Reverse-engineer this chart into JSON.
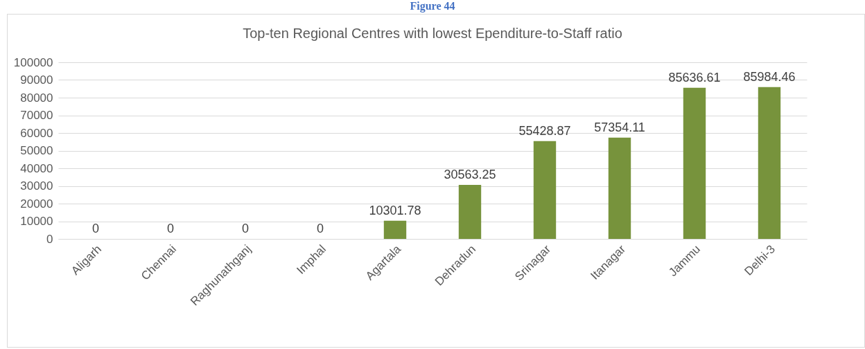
{
  "chart_data": {
    "type": "bar",
    "title": "Top-ten Regional Centres with lowest Ependiture-to-Staff ratio",
    "categories": [
      "Aligarh",
      "Chennai",
      "Raghunathganj",
      "Imphal",
      "Agartala",
      "Dehradun",
      "Srinagar",
      "Itanagar",
      "Jammu",
      "Delhi-3"
    ],
    "values": [
      0,
      0,
      0,
      0,
      10301.78,
      30563.25,
      55428.87,
      57354.11,
      85636.61,
      85984.46
    ],
    "color": "#77933c",
    "ylim": [
      0,
      100000
    ],
    "yticks": [
      0,
      10000,
      20000,
      30000,
      40000,
      50000,
      60000,
      70000,
      80000,
      90000,
      100000
    ],
    "grid": "y",
    "data_labels": true,
    "annotations": [
      "Figure 44"
    ]
  }
}
